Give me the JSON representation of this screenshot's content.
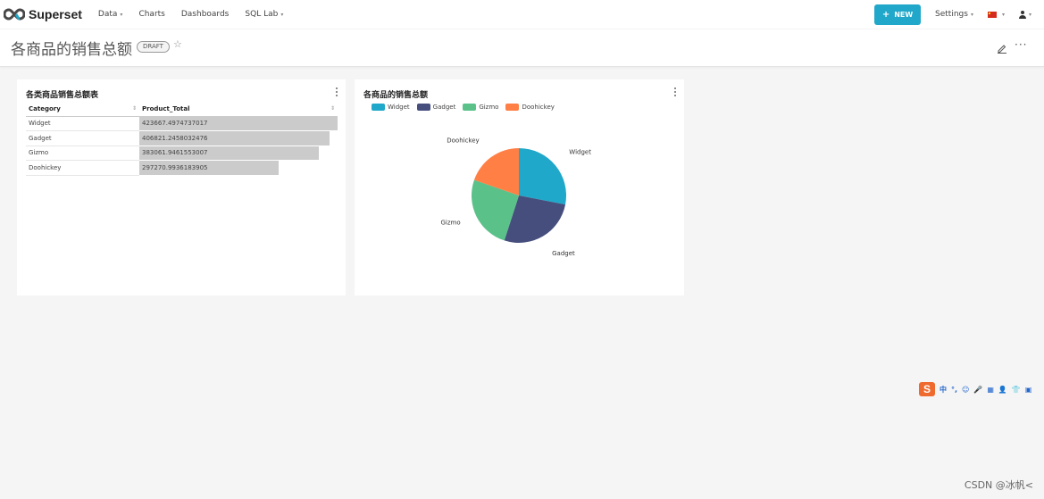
{
  "nav": {
    "brand": "Superset",
    "items": [
      {
        "label": "Data",
        "caret": "▾"
      },
      {
        "label": "Charts",
        "caret": ""
      },
      {
        "label": "Dashboards",
        "caret": ""
      },
      {
        "label": "SQL Lab",
        "caret": "▾"
      }
    ],
    "new_button": {
      "icon": "+",
      "label": "NEW"
    },
    "settings": "Settings",
    "accent": "#20a7c9"
  },
  "dashboard": {
    "title": "各商品的销售总额",
    "badge": "DRAFT",
    "star": "☆",
    "more": "···"
  },
  "table_card": {
    "title": "各类商品销售总额表",
    "columns": [
      "Category",
      "Product_Total"
    ],
    "rows": [
      {
        "category": "Widget",
        "total": "423667.4974737017",
        "value": 423667.4974737017
      },
      {
        "category": "Gadget",
        "total": "406821.2458032476",
        "value": 406821.2458032476
      },
      {
        "category": "Gizmo",
        "total": "383061.9461553007",
        "value": 383061.9461553007
      },
      {
        "category": "Doohickey",
        "total": "297270.9936183905",
        "value": 297270.9936183905
      }
    ]
  },
  "pie_card": {
    "title": "各商品的销售总额"
  },
  "chart_data": {
    "type": "pie",
    "title": "各商品的销售总额",
    "categories": [
      "Widget",
      "Gadget",
      "Gizmo",
      "Doohickey"
    ],
    "values": [
      423667.4974737017,
      406821.2458032476,
      383061.9461553007,
      297270.9936183905
    ],
    "colors": [
      "#1fa8c9",
      "#454e7c",
      "#5ac189",
      "#ff7f44"
    ],
    "legend_position": "top-left"
  },
  "ime": {
    "logo": "S",
    "items": [
      "中",
      "°,",
      "☺",
      "🎤",
      "▦",
      "👤",
      "👕",
      "▣"
    ]
  },
  "watermark": "CSDN @冰帆<"
}
